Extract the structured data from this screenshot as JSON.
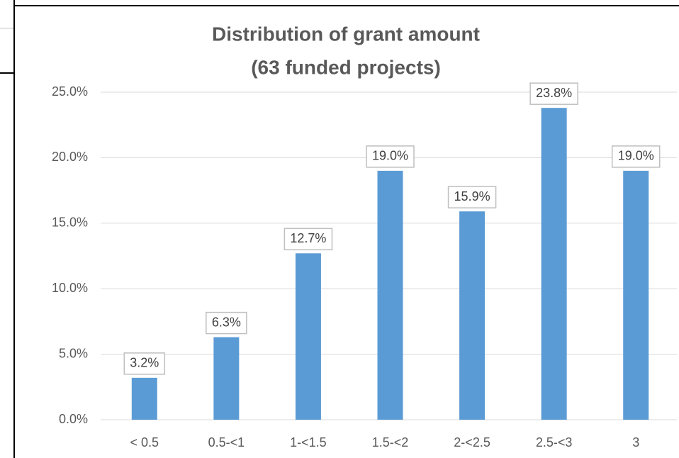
{
  "chart_data": {
    "type": "bar",
    "title": [
      "Distribution of grant amount",
      "(63 funded projects)"
    ],
    "categories": [
      "< 0.5",
      "0.5-<1",
      "1-<1.5",
      "1.5-<2",
      "2-<2.5",
      "2.5-<3",
      "3"
    ],
    "values": [
      3.2,
      6.3,
      12.7,
      19.0,
      15.9,
      23.8,
      19.0
    ],
    "value_labels": [
      "3.2%",
      "6.3%",
      "12.7%",
      "19.0%",
      "15.9%",
      "23.8%",
      "19.0%"
    ],
    "color": "#5b9bd5",
    "ylim": [
      0,
      25
    ],
    "yticks": [
      {
        "value": 0,
        "label": "0.0%"
      },
      {
        "value": 5,
        "label": "5.0%"
      },
      {
        "value": 10,
        "label": "10.0%"
      },
      {
        "value": 15,
        "label": "15.0%"
      },
      {
        "value": 20,
        "label": "20.0%"
      },
      {
        "value": 25,
        "label": "25.0%"
      }
    ],
    "grid": true
  }
}
